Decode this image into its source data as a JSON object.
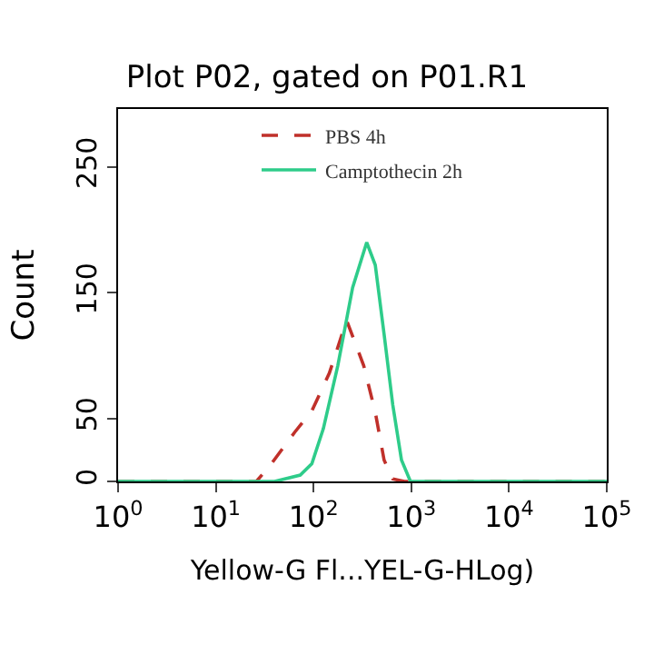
{
  "chart_data": {
    "type": "line",
    "title": "Plot P02, gated on P01.R1",
    "xlabel": "Yellow-G Fl...YEL-G-HLog)",
    "ylabel": "Count",
    "log": "x",
    "xlim": [
      1,
      100000
    ],
    "xticks": [
      {
        "value": 1,
        "label": "10$^{0}$"
      },
      {
        "value": 10,
        "label": "10$^{1}$"
      },
      {
        "value": 100,
        "label": "10$^{2}$"
      },
      {
        "value": 1000,
        "label": "10$^{3}$"
      },
      {
        "value": 10000,
        "label": "10$^{4}$"
      },
      {
        "value": 100000,
        "label": "10$^{5}$"
      }
    ],
    "ylim": [
      0,
      296
    ],
    "yticks": [
      0,
      50,
      150,
      250
    ],
    "legend": "top",
    "series": [
      {
        "name": "PBS 4h",
        "color": "#c0302a",
        "line_style": "dashed",
        "x": [
          1,
          26,
          37,
          64,
          96,
          145,
          218,
          326,
          428,
          527,
          646,
          850,
          100000
        ],
        "values": [
          0,
          0,
          14,
          39,
          56,
          86,
          128,
          92,
          55,
          17,
          2,
          0,
          0
        ]
      },
      {
        "name": "Camptothecin 2h",
        "color": "#2ecc8a",
        "line_style": "solid",
        "x": [
          1,
          40,
          73,
          96,
          126,
          177,
          251,
          350,
          428,
          527,
          646,
          794,
          980,
          100000
        ],
        "values": [
          0,
          0,
          5,
          14,
          42,
          92,
          154,
          190,
          172,
          117,
          61,
          17,
          0,
          0
        ]
      }
    ]
  }
}
